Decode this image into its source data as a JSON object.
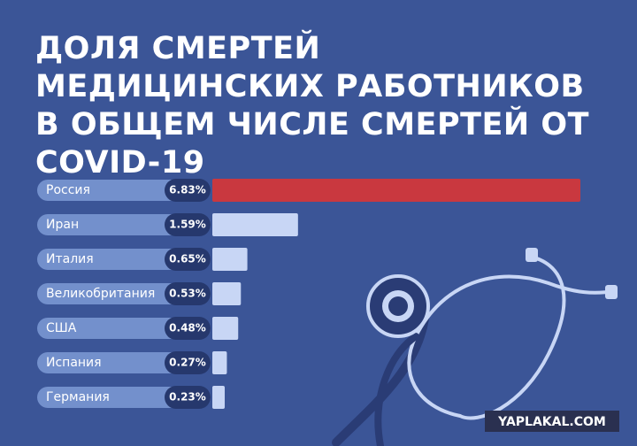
{
  "chart_data": {
    "type": "bar",
    "orientation": "horizontal",
    "title": "ДОЛЯ СМЕРТЕЙ МЕДИЦИНСКИХ РАБОТНИКОВ В ОБЩЕМ ЧИСЛЕ СМЕРТЕЙ ОТ COVID-19",
    "categories": [
      "Россия",
      "Иран",
      "Италия",
      "Великобритания",
      "США",
      "Испания",
      "Германия"
    ],
    "values": [
      6.83,
      1.59,
      0.65,
      0.53,
      0.48,
      0.27,
      0.23
    ],
    "value_labels": [
      "6.83%",
      "1.59%",
      "0.65%",
      "0.53%",
      "0.48%",
      "0.27%",
      "0.23%"
    ],
    "colors": [
      "#c9383f",
      "#c8d6f5",
      "#c8d6f5",
      "#c8d6f5",
      "#c8d6f5",
      "#c8d6f5",
      "#c8d6f5"
    ]
  },
  "watermark": "YAPLAKAL.COM"
}
